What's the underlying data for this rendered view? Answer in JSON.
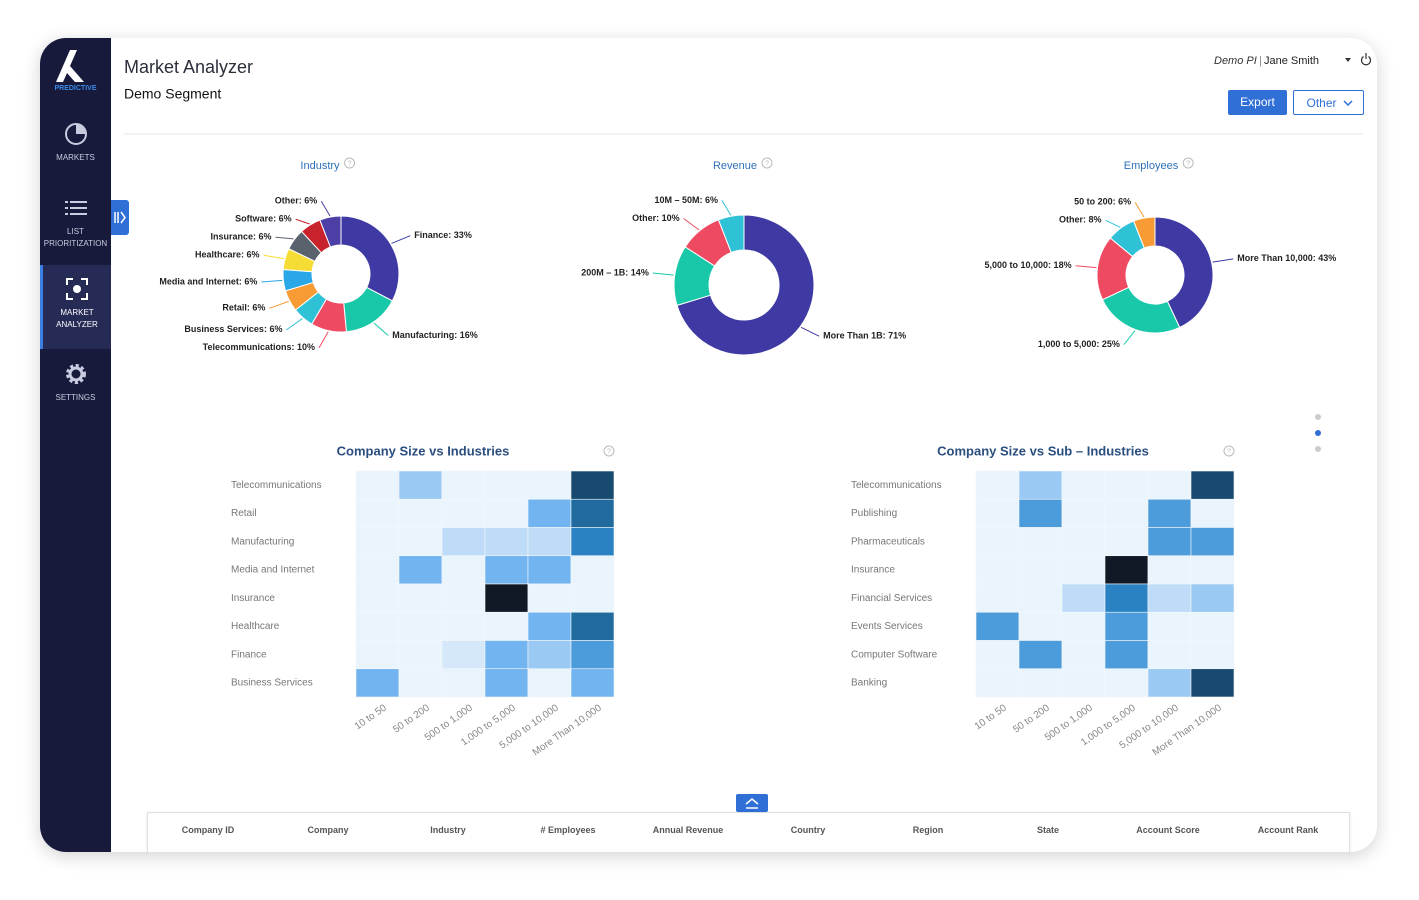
{
  "sidebar": {
    "brand": "PREDICTIVE",
    "nav": [
      "MARKETS",
      "LIST PRIORITIZATION",
      "MARKET ANALYZER",
      "SETTINGS"
    ]
  },
  "header": {
    "title": "Market Analyzer",
    "subtitle": "Demo Segment",
    "account": "Demo PI",
    "separator": "|",
    "user": "Jane Smith",
    "buttons": [
      "Export",
      "Other"
    ]
  },
  "chart_data": [
    {
      "type": "donut",
      "title": "Industry",
      "values": [
        33,
        16,
        10,
        6,
        6,
        6,
        6,
        6,
        6,
        6
      ],
      "value_labels": [
        "Finance: 33%",
        "Manufacturing: 16%",
        "Telecommunications: 10%",
        "Business Services: 6%",
        "Retail: 6%",
        "Media and Internet: 6%",
        "Healthcare: 6%",
        "Insurance: 6%",
        "Software: 6%",
        "Other: 6%"
      ],
      "colors": [
        "#3f3aa3",
        "#19c8a9",
        "#ee4a62",
        "#2fc1d5",
        "#f89b35",
        "#2aa7e6",
        "#f6dd36",
        "#59626d",
        "#c8222c",
        "#4c40a6"
      ]
    },
    {
      "type": "donut",
      "title": "Revenue",
      "values": [
        71,
        14,
        10,
        6
      ],
      "value_labels": [
        "More Than 1B: 71%",
        "200M – 1B: 14%",
        "Other: 10%",
        "10M – 50M: 6%"
      ],
      "colors": [
        "#3f3aa3",
        "#19c8a9",
        "#ee4a62",
        "#2fc1d5"
      ]
    },
    {
      "type": "donut",
      "title": "Employees",
      "values": [
        43,
        25,
        18,
        8,
        6
      ],
      "value_labels": [
        "More Than 10,000: 43%",
        "1,000 to 5,000: 25%",
        "5,000 to 10,000: 18%",
        "Other: 8%",
        "50 to 200: 6%"
      ],
      "colors": [
        "#3f3aa3",
        "#19c8a9",
        "#ee4a62",
        "#2fc1d5",
        "#f89b35"
      ]
    },
    {
      "type": "heatmap",
      "title": "Company Size vs Industries",
      "categories": [
        "10 to 50",
        "50 to 200",
        "500 to 1,000",
        "1,000 to 5,000",
        "5,000 to 10,000",
        "More Than 10,000"
      ],
      "y_categories": [
        "Telecommunications",
        "Retail",
        "Manufacturing",
        "Media and Internet",
        "Insurance",
        "Healthcare",
        "Finance",
        "Business Services"
      ],
      "values": [
        [
          1,
          4,
          1,
          1,
          1,
          9
        ],
        [
          1,
          1,
          1,
          1,
          5,
          8
        ],
        [
          1,
          1,
          3,
          3,
          3,
          7
        ],
        [
          1,
          5,
          1,
          5,
          5,
          1
        ],
        [
          1,
          1,
          1,
          10,
          1,
          1
        ],
        [
          1,
          1,
          1,
          1,
          5,
          8
        ],
        [
          1,
          1,
          2,
          5,
          4,
          6
        ],
        [
          5,
          1,
          1,
          5,
          1,
          5
        ]
      ]
    },
    {
      "type": "heatmap",
      "title": "Company Size vs Sub – Industries",
      "categories": [
        "10 to 50",
        "50 to 200",
        "500 to 1,000",
        "1,000 to 5,000",
        "5,000 to 10,000",
        "More Than 10,000"
      ],
      "y_categories": [
        "Telecommunications",
        "Publishing",
        "Pharmaceuticals",
        "Insurance",
        "Financial Services",
        "Events Services",
        "Computer Software",
        "Banking"
      ],
      "values": [
        [
          1,
          4,
          1,
          1,
          1,
          9
        ],
        [
          1,
          6,
          1,
          1,
          6,
          1
        ],
        [
          1,
          1,
          1,
          1,
          6,
          6
        ],
        [
          1,
          1,
          1,
          10,
          1,
          1
        ],
        [
          1,
          1,
          3,
          7,
          3,
          4
        ],
        [
          6,
          1,
          1,
          6,
          1,
          1
        ],
        [
          1,
          6,
          1,
          6,
          1,
          1
        ],
        [
          1,
          1,
          1,
          1,
          4,
          9
        ]
      ]
    }
  ],
  "table": {
    "columns": [
      "Company ID",
      "Company",
      "Industry",
      "# Employees",
      "Annual Revenue",
      "Country",
      "Region",
      "State",
      "Account Score",
      "Account Rank"
    ]
  }
}
